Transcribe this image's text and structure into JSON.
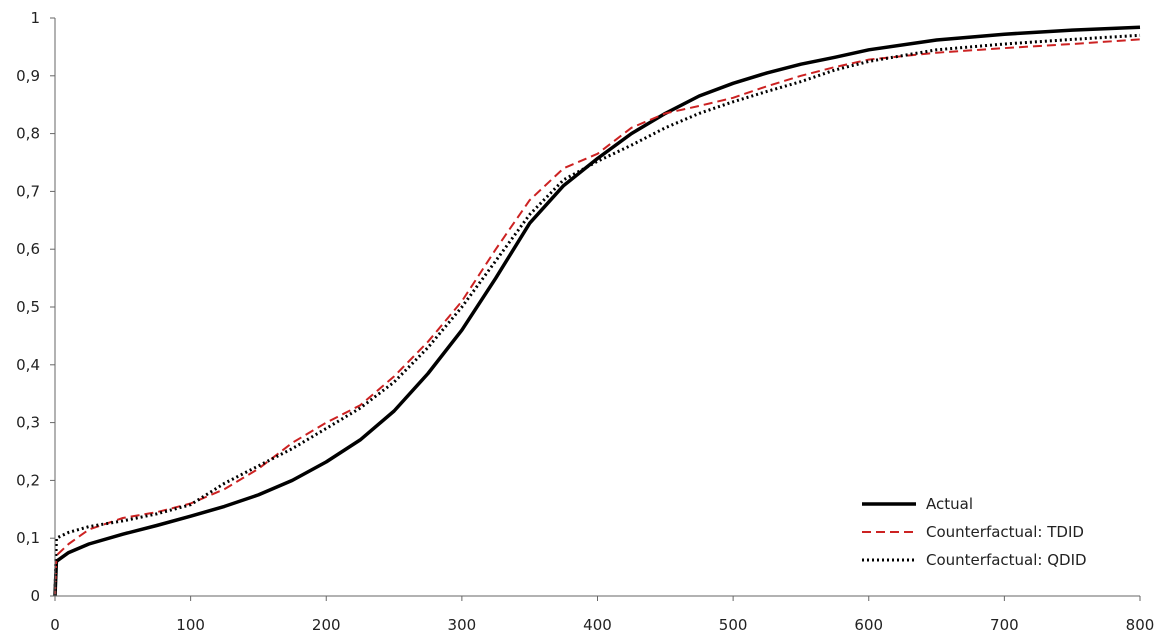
{
  "chart_data": {
    "type": "line",
    "title": "",
    "xlabel": "",
    "ylabel": "",
    "xlim": [
      0,
      800
    ],
    "ylim": [
      0,
      1
    ],
    "x_ticks": [
      "0",
      "100",
      "200",
      "300",
      "400",
      "500",
      "600",
      "700",
      "800"
    ],
    "y_ticks": [
      "0",
      "0,1",
      "0,2",
      "0,3",
      "0,4",
      "0,5",
      "0,6",
      "0,7",
      "0,8",
      "0,9",
      "1"
    ],
    "grid": false,
    "legend_position": "bottom-right",
    "series": [
      {
        "name": "Actual",
        "style": "solid",
        "color": "#000000",
        "x": [
          0,
          1,
          10,
          25,
          50,
          75,
          100,
          125,
          150,
          175,
          200,
          225,
          250,
          275,
          300,
          325,
          350,
          375,
          400,
          425,
          450,
          475,
          500,
          525,
          550,
          575,
          600,
          650,
          700,
          750,
          800
        ],
        "y": [
          0.0,
          0.06,
          0.075,
          0.09,
          0.107,
          0.122,
          0.138,
          0.155,
          0.175,
          0.2,
          0.232,
          0.27,
          0.32,
          0.385,
          0.46,
          0.55,
          0.645,
          0.71,
          0.757,
          0.8,
          0.835,
          0.865,
          0.887,
          0.905,
          0.92,
          0.932,
          0.945,
          0.962,
          0.972,
          0.979,
          0.984
        ]
      },
      {
        "name": "Counterfactual: TDID",
        "style": "dashed",
        "color": "#cc2222",
        "x": [
          0,
          1,
          10,
          25,
          50,
          75,
          100,
          125,
          150,
          175,
          200,
          225,
          250,
          275,
          300,
          325,
          350,
          375,
          400,
          425,
          450,
          475,
          500,
          525,
          550,
          575,
          600,
          650,
          700,
          750,
          800
        ],
        "y": [
          0.0,
          0.07,
          0.09,
          0.115,
          0.135,
          0.145,
          0.16,
          0.185,
          0.22,
          0.265,
          0.3,
          0.33,
          0.38,
          0.44,
          0.51,
          0.6,
          0.685,
          0.74,
          0.765,
          0.81,
          0.835,
          0.848,
          0.862,
          0.882,
          0.9,
          0.915,
          0.928,
          0.94,
          0.948,
          0.955,
          0.963
        ]
      },
      {
        "name": "Counterfactual: QDID",
        "style": "dotted",
        "color": "#000000",
        "x": [
          0,
          1,
          10,
          25,
          50,
          75,
          100,
          125,
          150,
          175,
          200,
          225,
          250,
          275,
          300,
          325,
          350,
          375,
          400,
          425,
          450,
          475,
          500,
          525,
          550,
          575,
          600,
          650,
          700,
          750,
          800
        ],
        "y": [
          0.0,
          0.1,
          0.11,
          0.12,
          0.13,
          0.142,
          0.158,
          0.195,
          0.225,
          0.255,
          0.29,
          0.325,
          0.37,
          0.43,
          0.5,
          0.58,
          0.66,
          0.72,
          0.752,
          0.78,
          0.81,
          0.835,
          0.855,
          0.873,
          0.89,
          0.91,
          0.925,
          0.945,
          0.955,
          0.963,
          0.97
        ]
      }
    ]
  }
}
